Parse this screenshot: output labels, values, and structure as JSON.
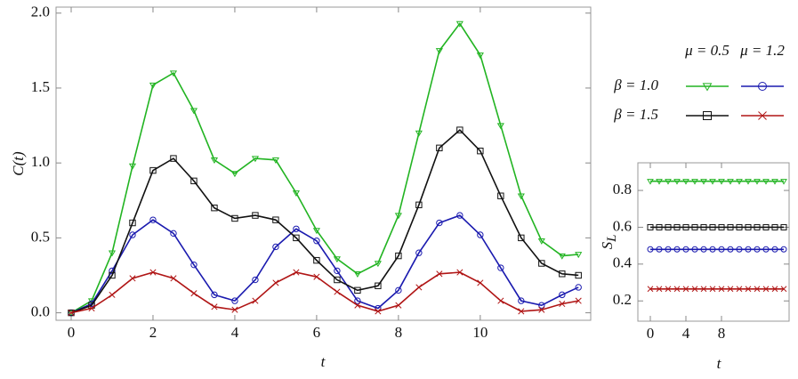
{
  "chart_data": [
    {
      "type": "line",
      "ylabel": "C(t)",
      "xlabel": "t",
      "x": [
        0,
        0.5,
        1,
        1.5,
        2,
        2.5,
        3,
        3.5,
        4,
        4.5,
        5,
        5.5,
        6,
        6.5,
        7,
        7.5,
        8,
        8.5,
        9,
        9.5,
        10,
        10.5,
        11,
        11.5,
        12,
        12.4
      ],
      "series": [
        {
          "color": "#22b422",
          "marker": "triangle-down",
          "values": [
            0,
            0.08,
            0.4,
            0.98,
            1.52,
            1.6,
            1.35,
            1.02,
            0.93,
            1.03,
            1.02,
            0.8,
            0.55,
            0.36,
            0.26,
            0.33,
            0.65,
            1.2,
            1.75,
            1.93,
            1.72,
            1.25,
            0.78,
            0.48,
            0.38,
            0.39
          ]
        },
        {
          "color": "#1a1aaf",
          "marker": "circle",
          "values": [
            0,
            0.06,
            0.28,
            0.52,
            0.62,
            0.53,
            0.32,
            0.12,
            0.08,
            0.22,
            0.44,
            0.56,
            0.48,
            0.28,
            0.08,
            0.03,
            0.15,
            0.4,
            0.6,
            0.65,
            0.52,
            0.3,
            0.08,
            0.05,
            0.12,
            0.17
          ]
        },
        {
          "color": "#111111",
          "marker": "square",
          "values": [
            0,
            0.05,
            0.25,
            0.6,
            0.95,
            1.03,
            0.88,
            0.7,
            0.63,
            0.65,
            0.62,
            0.5,
            0.35,
            0.22,
            0.15,
            0.18,
            0.38,
            0.72,
            1.1,
            1.22,
            1.08,
            0.78,
            0.5,
            0.33,
            0.26,
            0.25
          ]
        },
        {
          "color": "#b01515",
          "marker": "x",
          "values": [
            0,
            0.03,
            0.12,
            0.23,
            0.27,
            0.23,
            0.13,
            0.04,
            0.02,
            0.08,
            0.2,
            0.27,
            0.24,
            0.14,
            0.05,
            0.01,
            0.05,
            0.17,
            0.26,
            0.27,
            0.2,
            0.08,
            0.01,
            0.02,
            0.06,
            0.08
          ]
        }
      ],
      "xlim": [
        -0.37,
        12.7
      ],
      "xticks": [
        0,
        2,
        4,
        6,
        8,
        10
      ],
      "ylim": [
        -0.05,
        2.04
      ],
      "yticks": [
        {
          "value": 0,
          "label": "0.0"
        },
        0.5,
        {
          "value": 1,
          "label": "1.0"
        },
        1.5,
        {
          "value": 2,
          "label": "2.0"
        }
      ],
      "legend": {
        "column_headers": [
          "μ = 0.5",
          "μ = 1.2"
        ],
        "row_headers": [
          "β = 1.0",
          "β = 1.5"
        ]
      }
    },
    {
      "type": "line",
      "ylabel": "S",
      "ylabel_subscript": "L",
      "xlabel": "t",
      "x": [
        0,
        1,
        2,
        3,
        4,
        5,
        6,
        7,
        8,
        9,
        10,
        11,
        12,
        13,
        14,
        15
      ],
      "series": [
        {
          "color": "#22b422",
          "marker": "triangle-down",
          "values": [
            0.85,
            0.85,
            0.85,
            0.85,
            0.85,
            0.85,
            0.85,
            0.85,
            0.85,
            0.85,
            0.85,
            0.85,
            0.85,
            0.85,
            0.85,
            0.85
          ]
        },
        {
          "color": "#1a1aaf",
          "marker": "circle",
          "values": [
            0.48,
            0.48,
            0.48,
            0.48,
            0.48,
            0.48,
            0.48,
            0.48,
            0.48,
            0.48,
            0.48,
            0.48,
            0.48,
            0.48,
            0.48,
            0.48
          ]
        },
        {
          "color": "#111111",
          "marker": "square",
          "values": [
            0.6,
            0.6,
            0.6,
            0.6,
            0.6,
            0.6,
            0.6,
            0.6,
            0.6,
            0.6,
            0.6,
            0.6,
            0.6,
            0.6,
            0.6,
            0.6
          ]
        },
        {
          "color": "#b01515",
          "marker": "x",
          "values": [
            0.265,
            0.265,
            0.265,
            0.265,
            0.265,
            0.265,
            0.265,
            0.265,
            0.265,
            0.265,
            0.265,
            0.265,
            0.265,
            0.265,
            0.265,
            0.265
          ]
        }
      ],
      "xlim": [
        -1.4,
        15.6
      ],
      "xticks": [
        0,
        4,
        8
      ],
      "ylim": [
        0.09,
        0.95
      ],
      "yticks": [
        0.2,
        0.4,
        0.6,
        0.8
      ]
    }
  ]
}
